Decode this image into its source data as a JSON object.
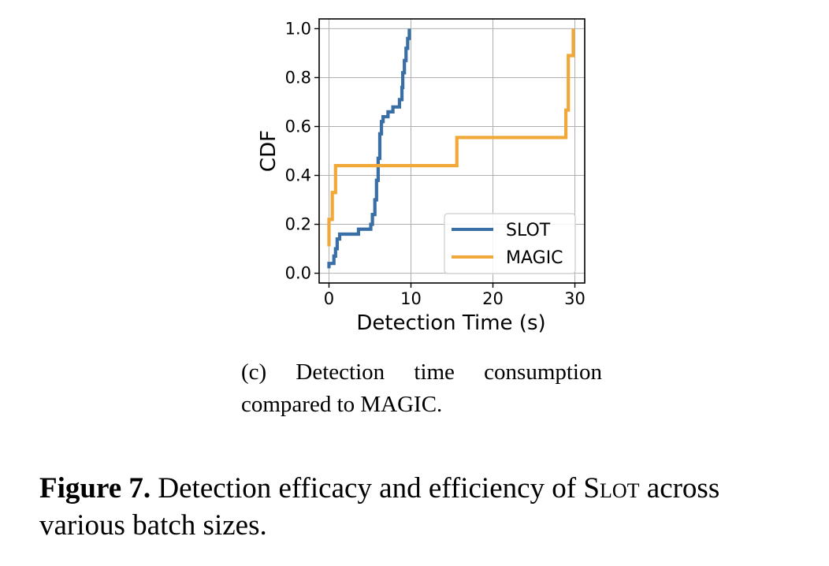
{
  "chart_data": {
    "type": "line",
    "subtype": "step-cdf",
    "xlabel": "Detection Time (s)",
    "ylabel": "CDF",
    "xlim": [
      -1.2,
      31.2
    ],
    "ylim": [
      -0.04,
      1.04
    ],
    "xticks": [
      0,
      10,
      20,
      30
    ],
    "yticks": [
      0.0,
      0.2,
      0.4,
      0.6,
      0.8,
      1.0
    ],
    "ytick_labels": [
      "0.0",
      "0.2",
      "0.4",
      "0.6",
      "0.8",
      "1.0"
    ],
    "xtick_labels": [
      "0",
      "10",
      "20",
      "30"
    ],
    "grid": true,
    "legend_position": "bottom-right",
    "series": [
      {
        "name": "SLOT",
        "color": "#3a6fa6",
        "points": [
          [
            0.0,
            0.02
          ],
          [
            0.0,
            0.04
          ],
          [
            0.6,
            0.04
          ],
          [
            0.6,
            0.07
          ],
          [
            0.8,
            0.07
          ],
          [
            0.8,
            0.1
          ],
          [
            1.0,
            0.1
          ],
          [
            1.0,
            0.14
          ],
          [
            1.3,
            0.14
          ],
          [
            1.3,
            0.16
          ],
          [
            3.6,
            0.16
          ],
          [
            3.6,
            0.18
          ],
          [
            5.1,
            0.18
          ],
          [
            5.1,
            0.2
          ],
          [
            5.3,
            0.2
          ],
          [
            5.3,
            0.24
          ],
          [
            5.6,
            0.24
          ],
          [
            5.6,
            0.3
          ],
          [
            5.8,
            0.3
          ],
          [
            5.8,
            0.38
          ],
          [
            6.0,
            0.38
          ],
          [
            6.0,
            0.47
          ],
          [
            6.2,
            0.47
          ],
          [
            6.2,
            0.57
          ],
          [
            6.4,
            0.57
          ],
          [
            6.4,
            0.62
          ],
          [
            6.6,
            0.62
          ],
          [
            6.6,
            0.64
          ],
          [
            7.2,
            0.64
          ],
          [
            7.2,
            0.66
          ],
          [
            7.8,
            0.66
          ],
          [
            7.8,
            0.68
          ],
          [
            8.6,
            0.68
          ],
          [
            8.6,
            0.71
          ],
          [
            8.9,
            0.71
          ],
          [
            8.9,
            0.76
          ],
          [
            9.0,
            0.76
          ],
          [
            9.0,
            0.82
          ],
          [
            9.2,
            0.82
          ],
          [
            9.2,
            0.87
          ],
          [
            9.4,
            0.87
          ],
          [
            9.4,
            0.92
          ],
          [
            9.6,
            0.92
          ],
          [
            9.6,
            0.96
          ],
          [
            9.8,
            0.96
          ],
          [
            9.8,
            1.0
          ]
        ]
      },
      {
        "name": "MAGIC",
        "color": "#f0a838",
        "points": [
          [
            0.0,
            0.11
          ],
          [
            0.0,
            0.22
          ],
          [
            0.4,
            0.22
          ],
          [
            0.4,
            0.33
          ],
          [
            0.8,
            0.33
          ],
          [
            0.8,
            0.44
          ],
          [
            15.6,
            0.44
          ],
          [
            15.6,
            0.555
          ],
          [
            28.9,
            0.555
          ],
          [
            28.9,
            0.667
          ],
          [
            29.2,
            0.667
          ],
          [
            29.2,
            0.89
          ],
          [
            29.8,
            0.89
          ],
          [
            29.8,
            1.0
          ]
        ]
      }
    ]
  },
  "subcaption": {
    "line1": "(c) Detection time consumption",
    "line2": "compared to MAGIC."
  },
  "figure_caption": {
    "label": "Figure 7.",
    "text_before": " Detection efficacy and efficiency of ",
    "method": "Slot",
    "text_after": " across various batch sizes."
  }
}
